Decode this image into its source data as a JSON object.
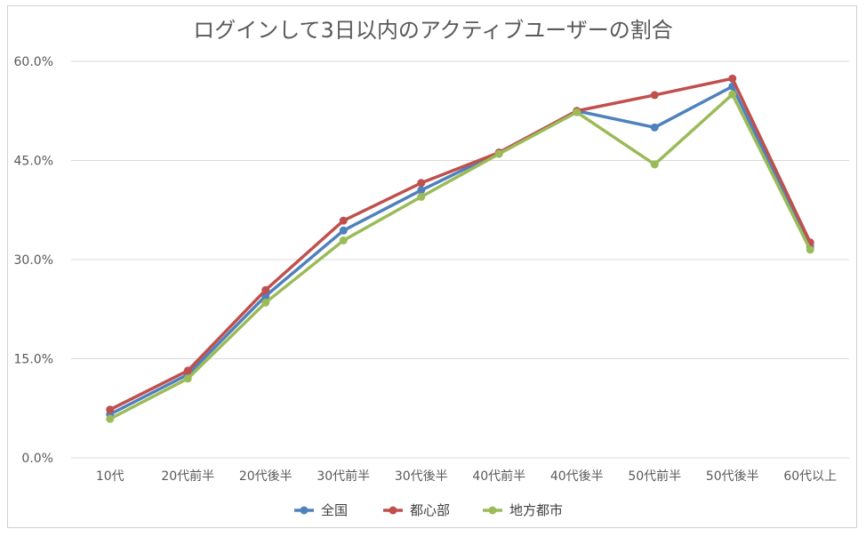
{
  "chart_data": {
    "type": "line",
    "title": "ログインして3日以内のアクティブユーザーの割合",
    "xlabel": "",
    "ylabel": "",
    "categories": [
      "10代",
      "20代前半",
      "20代後半",
      "30代前半",
      "30代後半",
      "40代前半",
      "40代後半",
      "50代前半",
      "50代後半",
      "60代以上"
    ],
    "ylim": [
      0,
      60
    ],
    "yticks": [
      0,
      15,
      30,
      45,
      60
    ],
    "ytick_labels": [
      "0.0%",
      "15.0%",
      "30.0%",
      "45.0%",
      "60.0%"
    ],
    "grid": true,
    "legend_position": "bottom",
    "series": [
      {
        "name": "全国",
        "color": "#4f81bd",
        "values": [
          6.6,
          12.6,
          24.5,
          34.4,
          40.5,
          46.2,
          52.5,
          50.0,
          56.2,
          32.0
        ]
      },
      {
        "name": "都心部",
        "color": "#c0504d",
        "values": [
          7.3,
          13.2,
          25.4,
          35.9,
          41.6,
          46.2,
          52.5,
          54.9,
          57.4,
          32.6
        ]
      },
      {
        "name": "地方都市",
        "color": "#9bbb59",
        "values": [
          5.9,
          12.0,
          23.5,
          32.9,
          39.5,
          46.0,
          52.3,
          44.4,
          55.0,
          31.5
        ]
      }
    ]
  }
}
